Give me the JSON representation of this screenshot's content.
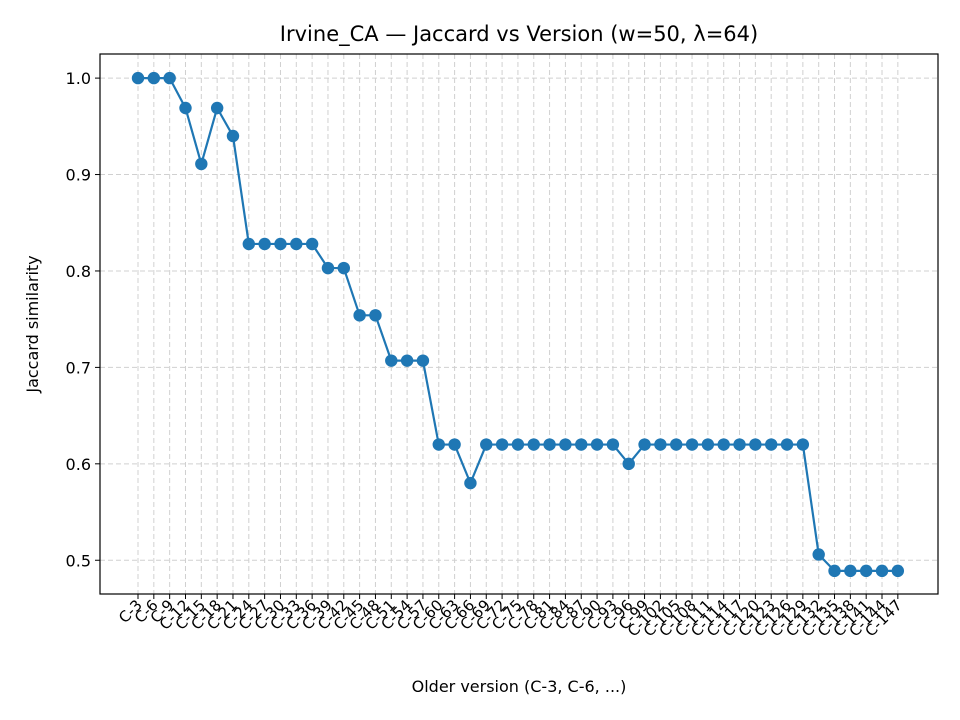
{
  "chart_data": {
    "type": "line",
    "title": "Irvine_CA — Jaccard vs Version (w=50, λ=64)",
    "xlabel": "Older version (C-3, C-6, ...)",
    "ylabel": "Jaccard similarity",
    "ylim": [
      0.465,
      1.025
    ],
    "yticks": [
      0.5,
      0.6,
      0.7,
      0.8,
      0.9,
      1.0
    ],
    "ytick_labels": [
      "0.5",
      "0.6",
      "0.7",
      "0.8",
      "0.9",
      "1.0"
    ],
    "grid": true,
    "legend": "none",
    "colors": {
      "line": "#1f77b4",
      "grid": "#d0d0d0"
    },
    "categories": [
      "C-3",
      "C-6",
      "C-9",
      "C-12",
      "C-15",
      "C-18",
      "C-21",
      "C-24",
      "C-27",
      "C-30",
      "C-33",
      "C-36",
      "C-39",
      "C-42",
      "C-45",
      "C-48",
      "C-51",
      "C-54",
      "C-57",
      "C-60",
      "C-63",
      "C-66",
      "C-69",
      "C-72",
      "C-75",
      "C-78",
      "C-81",
      "C-84",
      "C-87",
      "C-90",
      "C-93",
      "C-96",
      "C-99",
      "C-102",
      "C-105",
      "C-108",
      "C-111",
      "C-114",
      "C-117",
      "C-120",
      "C-123",
      "C-126",
      "C-129",
      "C-132",
      "C-135",
      "C-138",
      "C-141",
      "C-144",
      "C-147"
    ],
    "series": [
      {
        "values": [
          1.0,
          1.0,
          1.0,
          0.969,
          0.911,
          0.969,
          0.94,
          0.828,
          0.828,
          0.828,
          0.828,
          0.828,
          0.803,
          0.803,
          0.754,
          0.754,
          0.707,
          0.707,
          0.707,
          0.62,
          0.62,
          0.58,
          0.62,
          0.62,
          0.62,
          0.62,
          0.62,
          0.62,
          0.62,
          0.62,
          0.62,
          0.6,
          0.62,
          0.62,
          0.62,
          0.62,
          0.62,
          0.62,
          0.62,
          0.62,
          0.62,
          0.62,
          0.62,
          0.506,
          0.489,
          0.489,
          0.489,
          0.489,
          0.489
        ]
      }
    ]
  }
}
